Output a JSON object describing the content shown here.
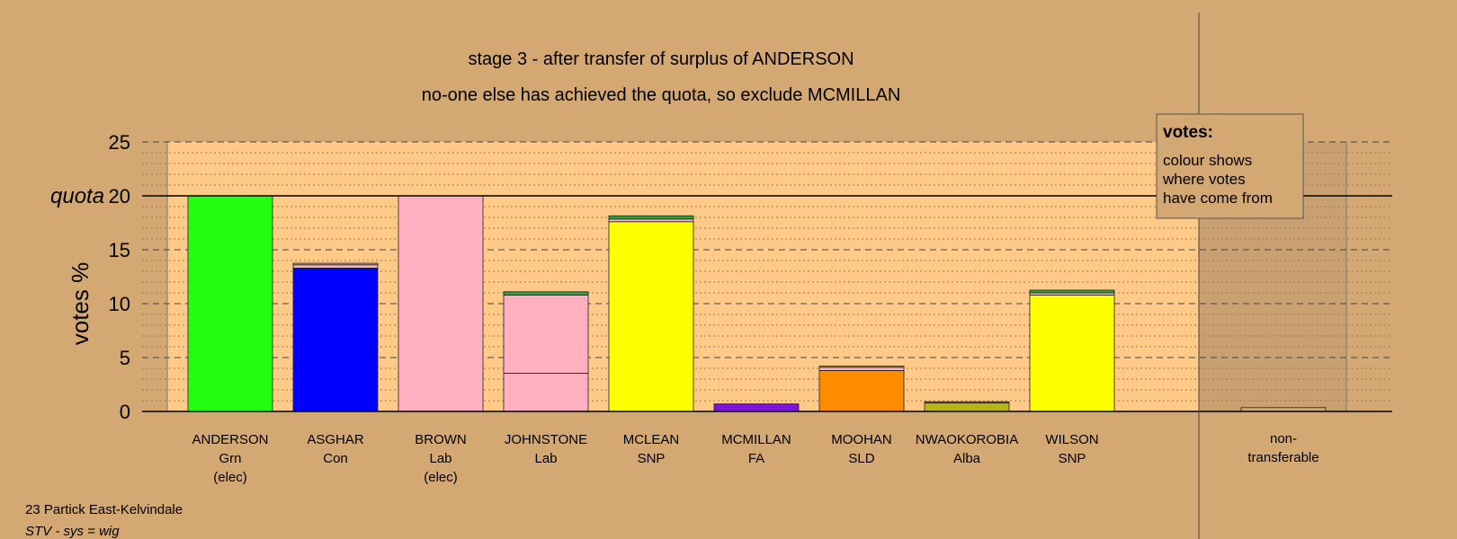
{
  "chart_data": {
    "type": "bar",
    "stacked": true,
    "title": "stage 3 - after transfer of surplus of ANDERSON",
    "subtitle": "no-one else has achieved the quota, so exclude MCMILLAN",
    "ylabel": "votes %",
    "ylim": [
      0,
      25
    ],
    "yticks": [
      0,
      5,
      10,
      15,
      20,
      25
    ],
    "quota": {
      "label": "quota",
      "value": 20
    },
    "grid": true,
    "legend": {
      "title": "votes:",
      "lines": [
        "colour shows",
        "where votes",
        "have come from"
      ],
      "placement": "top-right"
    },
    "candidates": [
      {
        "name": "ANDERSON",
        "party": "Grn",
        "status": "(elec)",
        "segments": [
          {
            "value": 20.0,
            "color": "#22ff11"
          }
        ]
      },
      {
        "name": "ASGHAR",
        "party": "Con",
        "status": "",
        "segments": [
          {
            "value": 13.3,
            "color": "#0000ff"
          },
          {
            "value": 0.3,
            "color": "#ffb0c0"
          },
          {
            "value": 0.15,
            "color": "#d4a872"
          }
        ]
      },
      {
        "name": "BROWN",
        "party": "Lab",
        "status": "(elec)",
        "segments": [
          {
            "value": 20.0,
            "color": "#ffb0c0"
          }
        ]
      },
      {
        "name": "JOHNSTONE",
        "party": "Lab",
        "status": "",
        "segments": [
          {
            "value": 3.55,
            "color": "#ffb0c0"
          },
          {
            "value": 7.25,
            "color": "#ffb0c0"
          },
          {
            "value": 0.3,
            "color": "#22aa33"
          }
        ]
      },
      {
        "name": "MCLEAN",
        "party": "SNP",
        "status": "",
        "segments": [
          {
            "value": 17.6,
            "color": "#ffff00"
          },
          {
            "value": 0.25,
            "color": "#ffb0c0"
          },
          {
            "value": 0.3,
            "color": "#22aa33"
          }
        ]
      },
      {
        "name": "MCMILLAN",
        "party": "FA",
        "status": "",
        "segments": [
          {
            "value": 0.7,
            "color": "#7a14d6"
          }
        ]
      },
      {
        "name": "MOOHAN",
        "party": "SLD",
        "status": "",
        "segments": [
          {
            "value": 3.8,
            "color": "#ff8c00"
          },
          {
            "value": 0.3,
            "color": "#ffb0c0"
          },
          {
            "value": 0.1,
            "color": "#d4a872"
          }
        ]
      },
      {
        "name": "NWAOKOROBIA",
        "party": "Alba",
        "status": "",
        "segments": [
          {
            "value": 0.8,
            "color": "#b8b414"
          },
          {
            "value": 0.1,
            "color": "#22aa33"
          }
        ]
      },
      {
        "name": "WILSON",
        "party": "SNP",
        "status": "",
        "segments": [
          {
            "value": 10.8,
            "color": "#ffff00"
          },
          {
            "value": 0.2,
            "color": "#ffb0c0"
          },
          {
            "value": 0.25,
            "color": "#22aa33"
          }
        ]
      }
    ],
    "nontransferable": {
      "label_lines": [
        "non-",
        "transferable"
      ],
      "segments": [
        {
          "value": 0.35,
          "color": "#d4a872"
        }
      ]
    },
    "colors": {
      "background": "#d4a872",
      "plot_area": "#ffc987",
      "shade": "#c9a070"
    }
  },
  "footer": {
    "constituency": "23 Partick East-Kelvindale",
    "system": "STV - sys = wig"
  }
}
